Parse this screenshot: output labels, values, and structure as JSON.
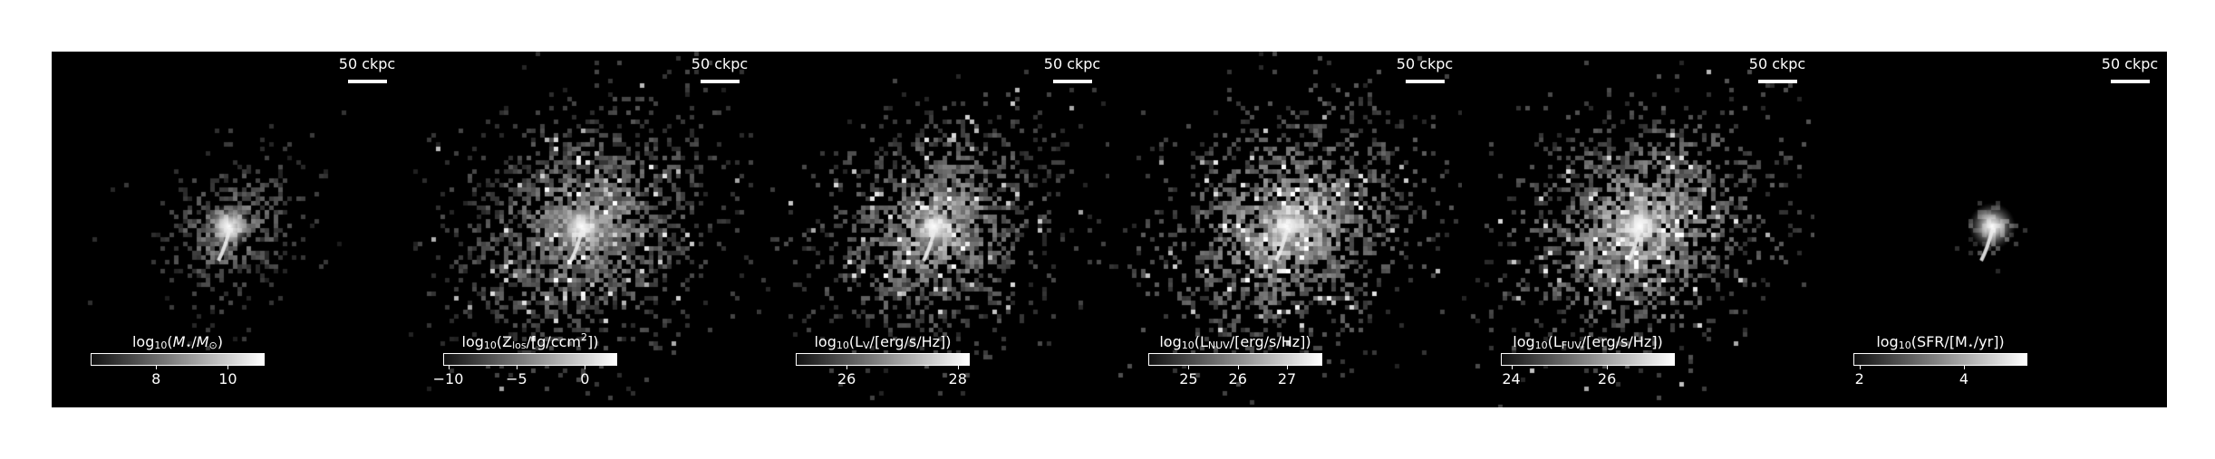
{
  "figure": {
    "scalebar_label": "50 ckpc",
    "panels": [
      {
        "name": "stellar-mass",
        "colorbar_label_parts": [
          "log",
          "10",
          "(",
          "M",
          "⋆",
          "/",
          "M",
          "⊙",
          ")"
        ],
        "ticks": [
          "8",
          "10"
        ],
        "tick_values": [
          8,
          10
        ],
        "range": [
          6.2,
          11.0
        ],
        "brightness": 0.75,
        "spread": 0.55
      },
      {
        "name": "metallicity",
        "colorbar_label_parts": [
          "log",
          "10",
          "(Z",
          "los",
          "/[g/ccm",
          "2",
          "])"
        ],
        "ticks": [
          "−10",
          "−5",
          "0"
        ],
        "tick_values": [
          -10,
          -5,
          0
        ],
        "range": [
          -10.3,
          2.3
        ],
        "brightness": 0.85,
        "spread": 1.0
      },
      {
        "name": "v-band-luminosity",
        "colorbar_label_parts": [
          "log",
          "10",
          "(L",
          "V",
          "/[erg/s/Hz])"
        ],
        "ticks": [
          "26",
          "28"
        ],
        "tick_values": [
          26,
          28
        ],
        "range": [
          25.1,
          28.2
        ],
        "brightness": 0.9,
        "spread": 0.9
      },
      {
        "name": "nuv-luminosity",
        "colorbar_label_parts": [
          "log",
          "10",
          "(L",
          "NUV",
          "/[erg/s/Hz])"
        ],
        "ticks": [
          "25",
          "26",
          "27"
        ],
        "tick_values": [
          25,
          26,
          27
        ],
        "range": [
          24.2,
          27.7
        ],
        "brightness": 1.0,
        "spread": 0.95
      },
      {
        "name": "fuv-luminosity",
        "colorbar_label_parts": [
          "log",
          "10",
          "(L",
          "FUV",
          "/[erg/s/Hz])"
        ],
        "ticks": [
          "24",
          "26"
        ],
        "tick_values": [
          24,
          26
        ],
        "range": [
          23.8,
          27.4
        ],
        "brightness": 1.0,
        "spread": 0.95
      },
      {
        "name": "star-formation-rate",
        "colorbar_label_parts": [
          "log",
          "10",
          "(SFR/[M",
          "⋆",
          "/yr])"
        ],
        "ticks": [
          "2",
          "4"
        ],
        "tick_values": [
          2,
          4
        ],
        "range": [
          1.9,
          5.2
        ],
        "brightness": 0.8,
        "spread": 0.15
      }
    ]
  }
}
